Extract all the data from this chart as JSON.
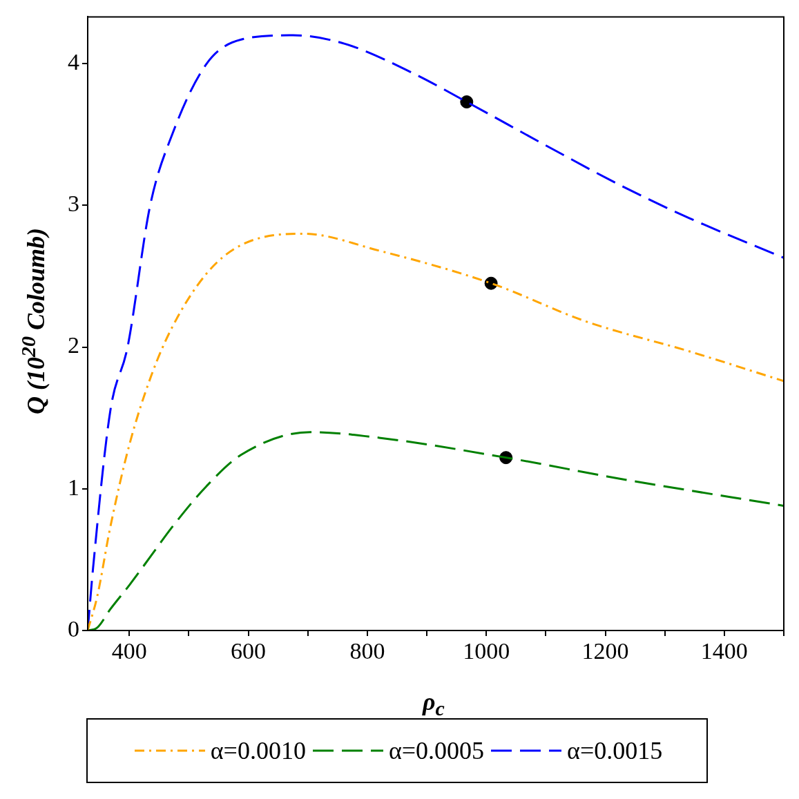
{
  "chart_data": {
    "type": "line",
    "xlabel": "ρ$_{c}$",
    "ylabel": "Q (10$^{20}$ Coloumb)",
    "xlim": [
      330,
      1500
    ],
    "xticks": [
      400,
      {
        "value": 500,
        "label": null
      },
      600,
      {
        "value": 700,
        "label": null
      },
      800,
      {
        "value": 900,
        "label": null
      },
      1000,
      {
        "value": 1100,
        "label": null
      },
      1200,
      {
        "value": 1300,
        "label": null
      },
      1400,
      {
        "value": 1500,
        "label": null
      }
    ],
    "ylim": [
      0,
      4.33
    ],
    "yticks": [
      0,
      1,
      2,
      3,
      4
    ],
    "grid": false,
    "legend": "bottom",
    "marker": "none",
    "series": [
      {
        "name": "α=0.0010",
        "color": "#ffa500",
        "line_style": "dashdot",
        "x": [
          330,
          346,
          368,
          400,
          437,
          472,
          530,
          588,
          692,
          820,
          1008,
          1168,
          1341,
          1500
        ],
        "values": [
          0,
          0.24,
          0.73,
          1.31,
          1.8,
          2.14,
          2.52,
          2.72,
          2.8,
          2.68,
          2.45,
          2.18,
          1.97,
          1.76
        ]
      },
      {
        "name": "α=0.0005",
        "color": "#008000",
        "line_style": "dashed",
        "x": [
          330,
          346,
          368,
          400,
          437,
          472,
          530,
          588,
          704,
          820,
          1033,
          1226,
          1500
        ],
        "values": [
          0,
          0.02,
          0.15,
          0.32,
          0.53,
          0.73,
          1.02,
          1.24,
          1.4,
          1.36,
          1.22,
          1.07,
          0.88
        ]
      },
      {
        "name": "α=0.0015",
        "color": "#0000ff",
        "line_style": "dashed",
        "x": [
          330,
          339,
          368,
          397,
          435,
          472,
          530,
          588,
          675,
          762,
          878,
          967,
          1110,
          1226,
          1341,
          1500
        ],
        "values": [
          0,
          0.44,
          1.55,
          2.0,
          3.0,
          3.5,
          4.0,
          4.17,
          4.2,
          4.14,
          3.93,
          3.73,
          3.4,
          3.14,
          2.91,
          2.63
        ]
      },
      {
        "type": "scatter",
        "color": "#000000",
        "marker": "circle",
        "x": [
          967,
          1008,
          1033
        ],
        "values": [
          3.73,
          2.45,
          1.22
        ]
      }
    ]
  }
}
